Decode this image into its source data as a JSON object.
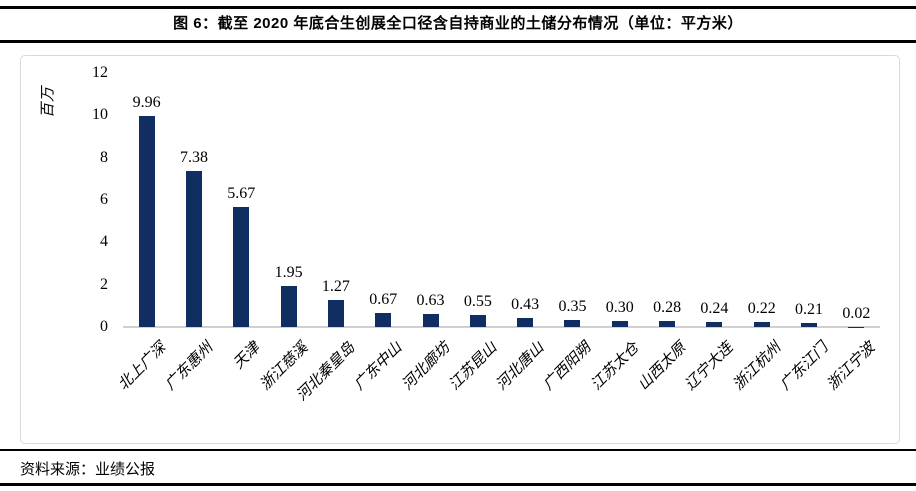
{
  "figure": {
    "title": "图 6：截至 2020 年底合生创展全口径含自持商业的土储分布情况（单位：平方米）"
  },
  "source": {
    "text": "资料来源：业绩公报"
  },
  "chart_data": {
    "type": "bar",
    "title": "图 6：截至 2020 年底合生创展全口径含自持商业的土储分布情况（单位：平方米）",
    "unit_label": "百万",
    "categories": [
      "北上广深",
      "广东惠州",
      "天津",
      "浙江慈溪",
      "河北秦皇岛",
      "广东中山",
      "河北廊坊",
      "江苏昆山",
      "河北唐山",
      "广西阳朔",
      "江苏太仓",
      "山西太原",
      "辽宁大连",
      "浙江杭州",
      "广东江门",
      "浙江宁波"
    ],
    "values": [
      9.96,
      7.38,
      5.67,
      1.95,
      1.27,
      0.67,
      0.63,
      0.55,
      0.43,
      0.35,
      0.3,
      0.28,
      0.24,
      0.22,
      0.21,
      0.02
    ],
    "yticks": [
      0,
      2,
      4,
      6,
      8,
      10,
      12
    ],
    "ylim": [
      0,
      12
    ],
    "xlabel": "",
    "ylabel": "百万",
    "grid": false,
    "legend": false,
    "data_labels": true,
    "bar_color": "#112e63",
    "axis_line_color": "#d0d0d0",
    "frame_border_color": "#d9d9d9"
  }
}
